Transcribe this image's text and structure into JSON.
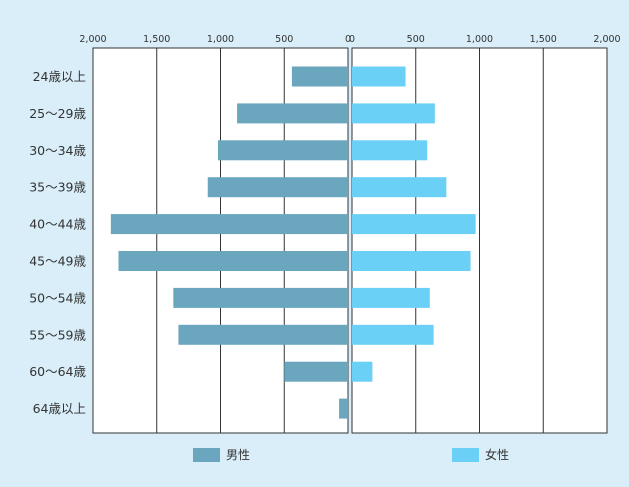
{
  "chart_data": {
    "type": "bar",
    "orientation": "horizontal-diverging",
    "categories": [
      "24歳以上",
      "25～29歳",
      "30～34歳",
      "35～39歳",
      "40～44歳",
      "45～49歳",
      "50～54歳",
      "55～59歳",
      "60～64歳",
      "64歳以上"
    ],
    "series": [
      {
        "name": "男性",
        "values": [
          440,
          870,
          1020,
          1100,
          1860,
          1800,
          1370,
          1330,
          500,
          70
        ],
        "color": "#6aa6be"
      },
      {
        "name": "女性",
        "values": [
          420,
          650,
          590,
          740,
          970,
          930,
          610,
          640,
          160,
          0
        ],
        "color": "#6bd0f5"
      }
    ],
    "xlim": [
      0,
      2000
    ],
    "left_ticks": [
      "2,000",
      "1,500",
      "1,000",
      "500",
      "0"
    ],
    "right_ticks": [
      "0",
      "500",
      "1,000",
      "1,500",
      "2,000"
    ],
    "tick_values": [
      0,
      500,
      1000,
      1500,
      2000
    ],
    "grid": "vertical",
    "legend_position": "bottom"
  }
}
